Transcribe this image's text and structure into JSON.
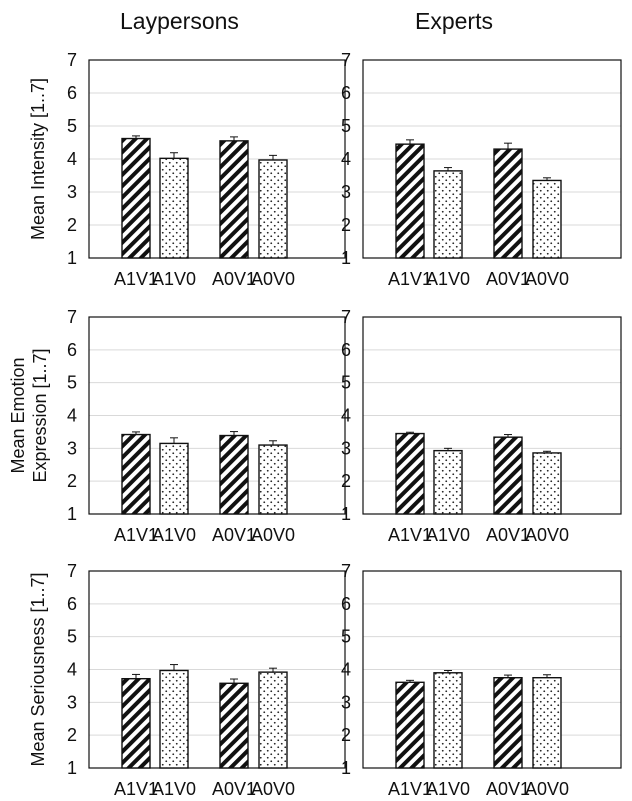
{
  "figure": {
    "column_titles": [
      "Laypersons",
      "Experts"
    ]
  },
  "chart_data": [
    {
      "type": "bar",
      "panel": "Laypersons",
      "ylabel": [
        "Mean Intensity [1..7]"
      ],
      "ylim": [
        1,
        7
      ],
      "yticks": [
        1,
        2,
        3,
        4,
        5,
        6,
        7
      ],
      "categories": [
        "A1V1",
        "A1V0",
        "A0V1",
        "A0V0"
      ],
      "values": [
        4.62,
        4.02,
        4.55,
        3.97
      ],
      "errors": [
        0.08,
        0.17,
        0.12,
        0.14
      ],
      "patterns": [
        "hatch",
        "dots",
        "hatch",
        "dots"
      ],
      "grid": true
    },
    {
      "type": "bar",
      "panel": "Experts",
      "ylabel": [],
      "ylim": [
        1,
        7
      ],
      "yticks": [
        1,
        2,
        3,
        4,
        5,
        6,
        7
      ],
      "categories": [
        "A1V1",
        "A1V0",
        "A0V1",
        "A0V0"
      ],
      "values": [
        4.45,
        3.64,
        4.3,
        3.35
      ],
      "errors": [
        0.13,
        0.1,
        0.18,
        0.08
      ],
      "patterns": [
        "hatch",
        "dots",
        "hatch",
        "dots"
      ],
      "grid": true
    },
    {
      "type": "bar",
      "panel": "Laypersons",
      "ylabel": [
        "Mean Emotion",
        "Expression [1..7]"
      ],
      "ylim": [
        1,
        7
      ],
      "yticks": [
        1,
        2,
        3,
        4,
        5,
        6,
        7
      ],
      "categories": [
        "A1V1",
        "A1V0",
        "A0V1",
        "A0V0"
      ],
      "values": [
        3.42,
        3.15,
        3.39,
        3.1
      ],
      "errors": [
        0.08,
        0.17,
        0.12,
        0.13
      ],
      "patterns": [
        "hatch",
        "dots",
        "hatch",
        "dots"
      ],
      "grid": true
    },
    {
      "type": "bar",
      "panel": "Experts",
      "ylabel": [],
      "ylim": [
        1,
        7
      ],
      "yticks": [
        1,
        2,
        3,
        4,
        5,
        6,
        7
      ],
      "categories": [
        "A1V1",
        "A1V0",
        "A0V1",
        "A0V0"
      ],
      "values": [
        3.45,
        2.93,
        3.34,
        2.86
      ],
      "errors": [
        0.04,
        0.07,
        0.08,
        0.05
      ],
      "patterns": [
        "hatch",
        "dots",
        "hatch",
        "dots"
      ],
      "grid": true
    },
    {
      "type": "bar",
      "panel": "Laypersons",
      "ylabel": [
        "Mean Seriousness [1..7]"
      ],
      "ylim": [
        1,
        7
      ],
      "yticks": [
        1,
        2,
        3,
        4,
        5,
        6,
        7
      ],
      "categories": [
        "A1V1",
        "A1V0",
        "A0V1",
        "A0V0"
      ],
      "values": [
        3.72,
        3.97,
        3.58,
        3.92
      ],
      "errors": [
        0.13,
        0.18,
        0.13,
        0.12
      ],
      "patterns": [
        "hatch",
        "dots",
        "hatch",
        "dots"
      ],
      "grid": true
    },
    {
      "type": "bar",
      "panel": "Experts",
      "ylabel": [],
      "ylim": [
        1,
        7
      ],
      "yticks": [
        1,
        2,
        3,
        4,
        5,
        6,
        7
      ],
      "categories": [
        "A1V1",
        "A1V0",
        "A0V1",
        "A0V0"
      ],
      "values": [
        3.61,
        3.9,
        3.75,
        3.75
      ],
      "errors": [
        0.06,
        0.07,
        0.08,
        0.09
      ],
      "patterns": [
        "hatch",
        "dots",
        "hatch",
        "dots"
      ],
      "grid": true
    }
  ]
}
